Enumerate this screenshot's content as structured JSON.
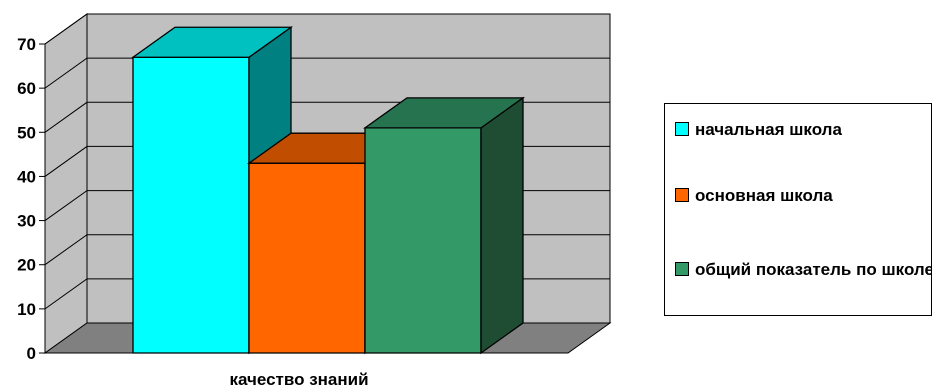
{
  "chart_data": {
    "type": "bar",
    "categories": [
      "качество знаний"
    ],
    "series": [
      {
        "name": "начальная школа",
        "values": [
          67
        ],
        "color": "#00FFFF",
        "side_color": "#008080",
        "top_color": "#00C0C0"
      },
      {
        "name": "основная школа",
        "values": [
          43
        ],
        "color": "#FF6600",
        "side_color": "#993300",
        "top_color": "#C04D00"
      },
      {
        "name": "общий показатель по школе",
        "values": [
          51
        ],
        "color": "#339966",
        "side_color": "#1E4D33",
        "top_color": "#267350"
      }
    ],
    "ylim": [
      0,
      70
    ],
    "yticks": [
      "0",
      "10",
      "20",
      "30",
      "40",
      "50",
      "60",
      "70"
    ],
    "title": "",
    "xlabel": "",
    "ylabel": "",
    "grid": true,
    "legend_position": "right",
    "style": "3d-column"
  }
}
